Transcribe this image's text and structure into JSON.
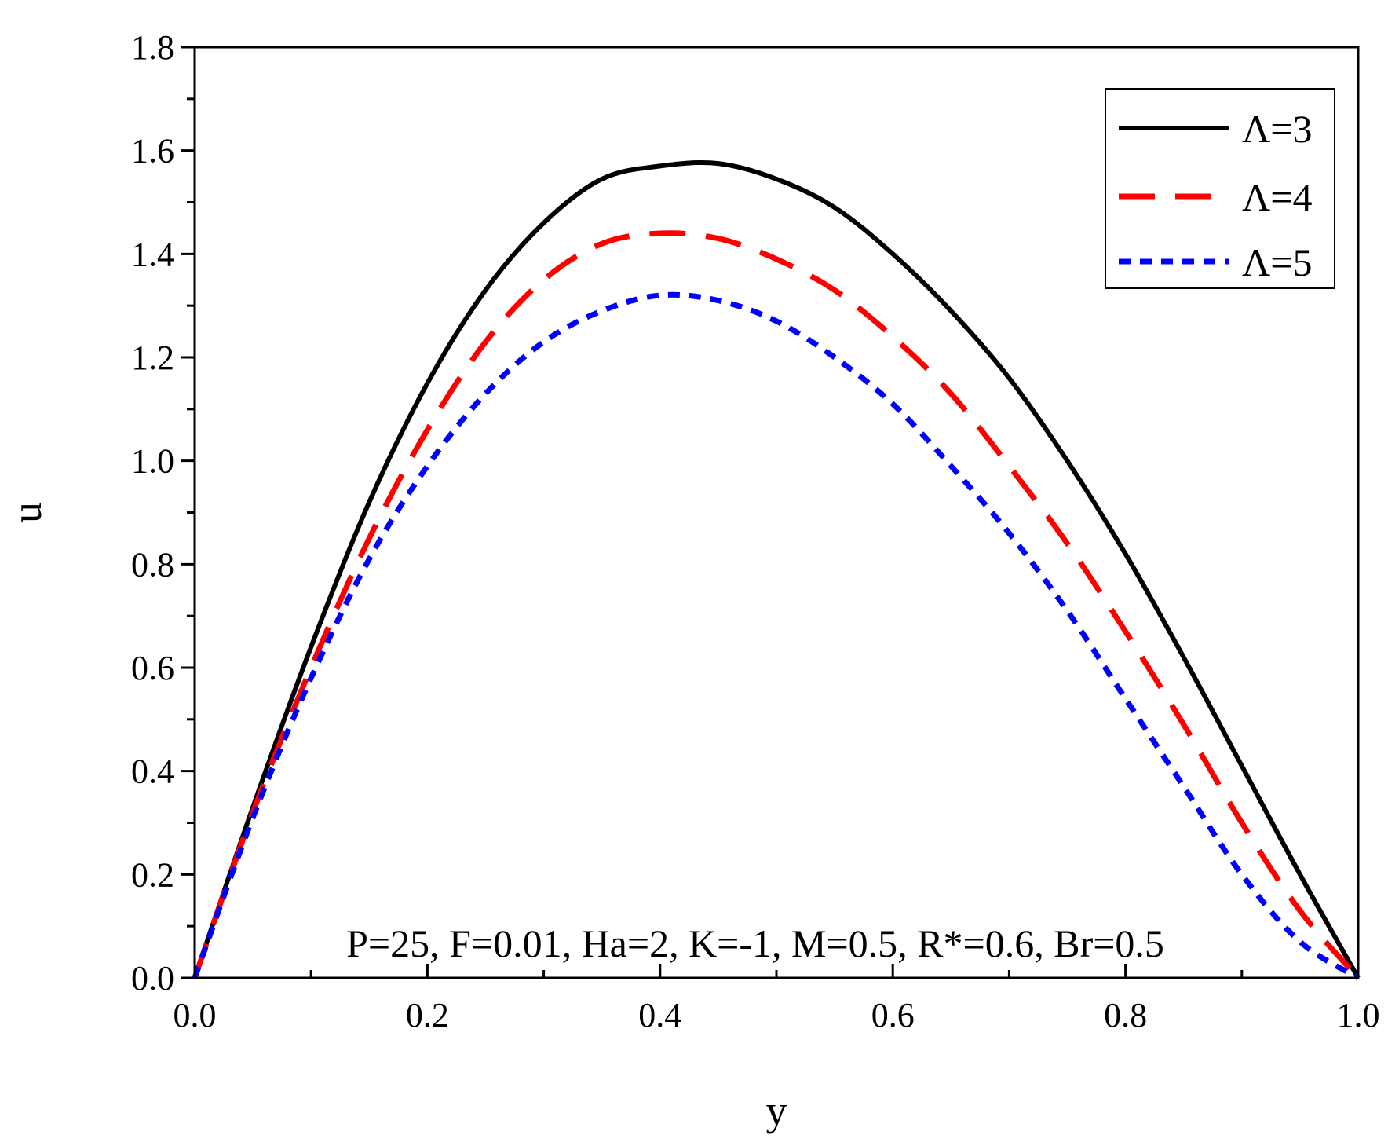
{
  "chart_data": {
    "type": "line",
    "title": "",
    "xlabel": "y",
    "ylabel": "u",
    "xlim": [
      0.0,
      1.0
    ],
    "ylim": [
      0.0,
      1.8
    ],
    "x_ticks": [
      "0.0",
      "0.2",
      "0.4",
      "0.6",
      "0.8",
      "1.0"
    ],
    "y_ticks": [
      "0.0",
      "0.2",
      "0.4",
      "0.6",
      "0.8",
      "1.0",
      "1.2",
      "1.4",
      "1.6",
      "1.8"
    ],
    "grid": false,
    "legend_position": "top-right",
    "annotation": "P=25, F=0.01, Ha=2, K=-1, M=0.5, R*=0.6, Br=0.5",
    "x": [
      0,
      0.05,
      0.1,
      0.15,
      0.2,
      0.25,
      0.3,
      0.35,
      0.4,
      0.45,
      0.5,
      0.55,
      0.6,
      0.65,
      0.7,
      0.75,
      0.8,
      0.85,
      0.9,
      0.95,
      1.0
    ],
    "series": [
      {
        "name": "Λ=3",
        "color": "#000000",
        "style": "solid",
        "values": [
          0.0,
          0.33,
          0.64,
          0.92,
          1.15,
          1.33,
          1.46,
          1.545,
          1.57,
          1.575,
          1.545,
          1.49,
          1.4,
          1.29,
          1.16,
          1.0,
          0.82,
          0.62,
          0.41,
          0.2,
          0.0
        ]
      },
      {
        "name": "Λ=4",
        "color": "#ff0000",
        "style": "dashed",
        "values": [
          0.0,
          0.32,
          0.6,
          0.85,
          1.06,
          1.23,
          1.35,
          1.42,
          1.44,
          1.43,
          1.39,
          1.33,
          1.24,
          1.13,
          0.99,
          0.84,
          0.67,
          0.49,
          0.3,
          0.13,
          0.0
        ]
      },
      {
        "name": "Λ=5",
        "color": "#0000ff",
        "style": "dotted",
        "values": [
          0.0,
          0.31,
          0.58,
          0.81,
          0.99,
          1.13,
          1.23,
          1.29,
          1.32,
          1.31,
          1.27,
          1.2,
          1.11,
          0.99,
          0.86,
          0.71,
          0.54,
          0.37,
          0.2,
          0.07,
          0.0
        ]
      }
    ]
  }
}
